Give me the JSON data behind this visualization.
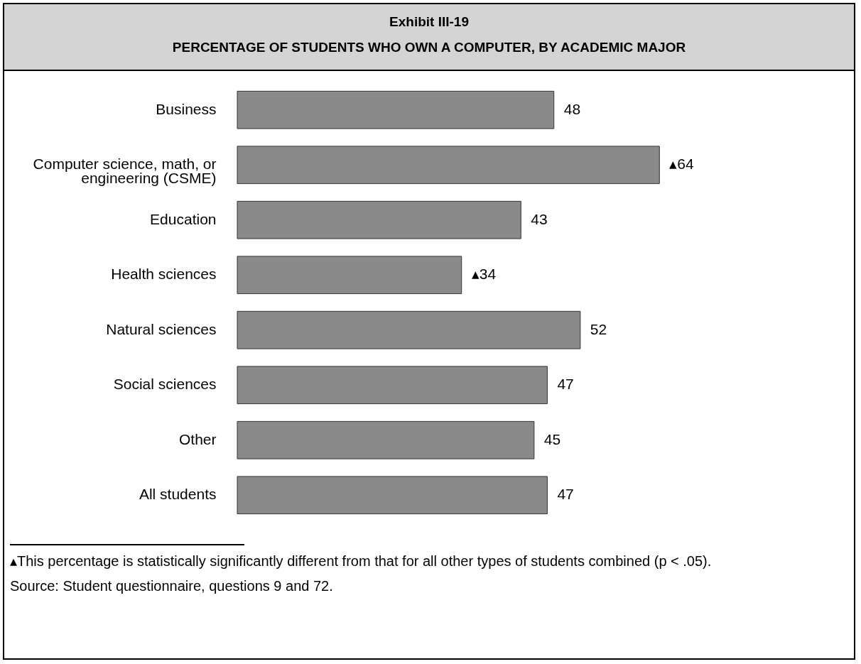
{
  "chart_data": {
    "type": "bar",
    "orientation": "horizontal",
    "title": "Exhibit III-19",
    "subtitle": "PERCENTAGE OF STUDENTS WHO OWN A COMPUTER, BY ACADEMIC MAJOR",
    "categories": [
      "Business",
      "Computer science, math, or engineering (CSME)",
      "Education",
      "Health sciences",
      "Natural sciences",
      "Social sciences",
      "Other",
      "All students"
    ],
    "values": [
      48,
      64,
      43,
      34,
      52,
      47,
      45,
      47
    ],
    "value_labels": [
      "48",
      "▴64",
      "43",
      "▴34",
      "52",
      "47",
      "45",
      "47"
    ],
    "color": "#8a8a8a",
    "grid": false,
    "annotations": [
      "▴This percentage is statistically significantly different from that for all other types of students combined (p < .05).",
      "Source:   Student questionnaire, questions 9 and 72."
    ]
  }
}
